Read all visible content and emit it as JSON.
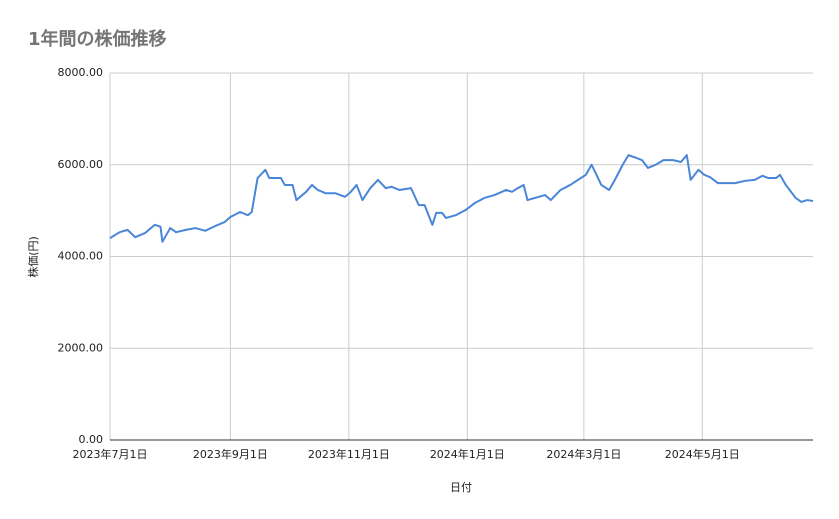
{
  "chart_data": {
    "type": "line",
    "title": "1年間の株価推移",
    "x_label": "日付",
    "y_label": "株価(円)",
    "x": [
      "2023-07-01",
      "2023-07-06",
      "2023-07-10",
      "2023-07-14",
      "2023-07-19",
      "2023-07-24",
      "2023-07-27",
      "2023-07-28",
      "2023-08-01",
      "2023-08-04",
      "2023-08-09",
      "2023-08-14",
      "2023-08-19",
      "2023-08-24",
      "2023-08-29",
      "2023-09-01",
      "2023-09-06",
      "2023-09-10",
      "2023-09-12",
      "2023-09-15",
      "2023-09-19",
      "2023-09-21",
      "2023-09-27",
      "2023-09-29",
      "2023-10-03",
      "2023-10-05",
      "2023-10-10",
      "2023-10-13",
      "2023-10-16",
      "2023-10-20",
      "2023-10-25",
      "2023-10-30",
      "2023-11-02",
      "2023-11-05",
      "2023-11-08",
      "2023-11-12",
      "2023-11-16",
      "2023-11-20",
      "2023-11-23",
      "2023-11-27",
      "2023-12-03",
      "2023-12-07",
      "2023-12-10",
      "2023-12-14",
      "2023-12-16",
      "2023-12-19",
      "2023-12-21",
      "2023-12-26",
      "2023-12-31",
      "2024-01-05",
      "2024-01-10",
      "2024-01-15",
      "2024-01-21",
      "2024-01-24",
      "2024-01-27",
      "2024-01-30",
      "2024-02-01",
      "2024-02-05",
      "2024-02-10",
      "2024-02-13",
      "2024-02-18",
      "2024-02-23",
      "2024-02-27",
      "2024-03-02",
      "2024-03-05",
      "2024-03-10",
      "2024-03-14",
      "2024-03-17",
      "2024-03-21",
      "2024-03-24",
      "2024-03-28",
      "2024-03-31",
      "2024-04-03",
      "2024-04-07",
      "2024-04-11",
      "2024-04-16",
      "2024-04-20",
      "2024-04-23",
      "2024-04-25",
      "2024-04-29",
      "2024-05-02",
      "2024-05-05",
      "2024-05-09",
      "2024-05-13",
      "2024-05-18",
      "2024-05-23",
      "2024-05-28",
      "2024-06-01",
      "2024-06-04",
      "2024-06-08",
      "2024-06-10",
      "2024-06-13",
      "2024-06-18",
      "2024-06-21",
      "2024-06-24",
      "2024-06-27"
    ],
    "series": [
      {
        "name": "株価",
        "color": "#4a86d8",
        "values": [
          4400,
          4530,
          4580,
          4420,
          4510,
          4690,
          4650,
          4320,
          4620,
          4530,
          4580,
          4620,
          4560,
          4660,
          4750,
          4860,
          4970,
          4900,
          4970,
          5710,
          5890,
          5710,
          5710,
          5560,
          5560,
          5230,
          5410,
          5560,
          5450,
          5380,
          5380,
          5300,
          5410,
          5560,
          5230,
          5490,
          5670,
          5490,
          5520,
          5450,
          5490,
          5120,
          5120,
          4690,
          4950,
          4950,
          4840,
          4900,
          5010,
          5170,
          5280,
          5340,
          5450,
          5410,
          5490,
          5560,
          5230,
          5280,
          5340,
          5230,
          5450,
          5560,
          5670,
          5780,
          6000,
          5560,
          5450,
          5670,
          6000,
          6210,
          6150,
          6100,
          5930,
          6000,
          6100,
          6100,
          6060,
          6210,
          5670,
          5890,
          5780,
          5730,
          5600,
          5600,
          5600,
          5650,
          5670,
          5760,
          5710,
          5710,
          5780,
          5560,
          5280,
          5190,
          5230,
          5210
        ]
      }
    ],
    "xlim": [
      "2023-07-01",
      "2024-06-27"
    ],
    "xticks": [
      {
        "value": "2023-07-01",
        "label": "2023年7月1日"
      },
      {
        "value": "2023-09-01",
        "label": "2023年9月1日"
      },
      {
        "value": "2023-11-01",
        "label": "2023年11月1日"
      },
      {
        "value": "2024-01-01",
        "label": "2024年1月1日"
      },
      {
        "value": "2024-03-01",
        "label": "2024年3月1日"
      },
      {
        "value": "2024-05-01",
        "label": "2024年5月1日"
      }
    ],
    "ylim": [
      0,
      8000
    ],
    "yticks": [
      {
        "value": 0,
        "label": "0.00"
      },
      {
        "value": 2000,
        "label": "2000.00"
      },
      {
        "value": 4000,
        "label": "4000.00"
      },
      {
        "value": 6000,
        "label": "6000.00"
      },
      {
        "value": 8000,
        "label": "8000.00"
      }
    ],
    "grid": true
  }
}
